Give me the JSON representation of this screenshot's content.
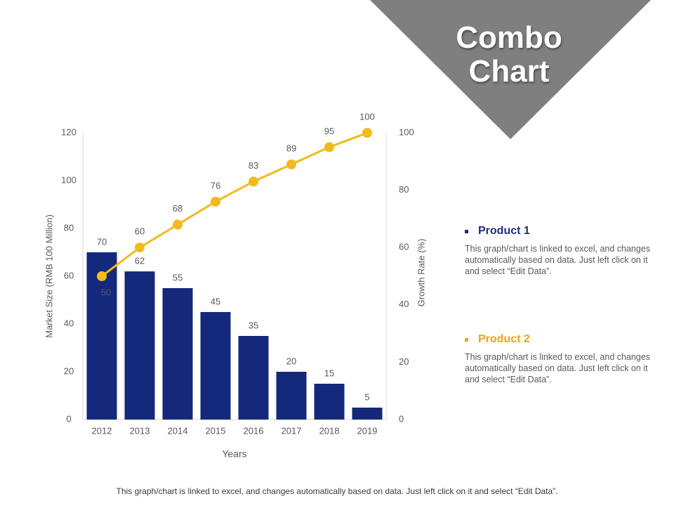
{
  "title": "Combo Chart",
  "colors": {
    "bars": "#15297C",
    "line": "#F2BA1B",
    "banner": "#7F7F7F",
    "axis_text": "#595959",
    "product1_head": "#1F2F7A",
    "product2_head": "#E8A617"
  },
  "chart_data": {
    "type": "bar",
    "categories": [
      "2012",
      "2013",
      "2014",
      "2015",
      "2016",
      "2017",
      "2018",
      "2019"
    ],
    "series": [
      {
        "name": "Market Size",
        "kind": "bar",
        "axis": "left",
        "values": [
          70,
          62,
          55,
          45,
          35,
          20,
          15,
          5
        ]
      },
      {
        "name": "Growth Rate",
        "kind": "line",
        "axis": "right",
        "values": [
          50,
          60,
          68,
          76,
          83,
          89,
          95,
          100
        ]
      }
    ],
    "xlabel": "Years",
    "ylabel": "Market Size (RMB 100 Million)",
    "y2label": "Growth Rate (%)",
    "ylim": [
      0,
      120
    ],
    "y2lim": [
      0,
      100
    ],
    "yticks": [
      0,
      20,
      40,
      60,
      80,
      100,
      120
    ],
    "y2ticks": [
      0,
      20,
      40,
      60,
      80,
      100
    ]
  },
  "legend": [
    {
      "label": "Product 1",
      "desc": "This graph/chart is linked to excel, and changes automatically based on data. Just left click on it and select “Edit Data”."
    },
    {
      "label": "Product 2",
      "desc": "This graph/chart is linked to excel, and changes automatically based on data. Just left click on it and select “Edit Data”."
    }
  ],
  "footnote": "This graph/chart is linked to excel, and changes automatically based on data. Just left click on it and select “Edit Data”."
}
